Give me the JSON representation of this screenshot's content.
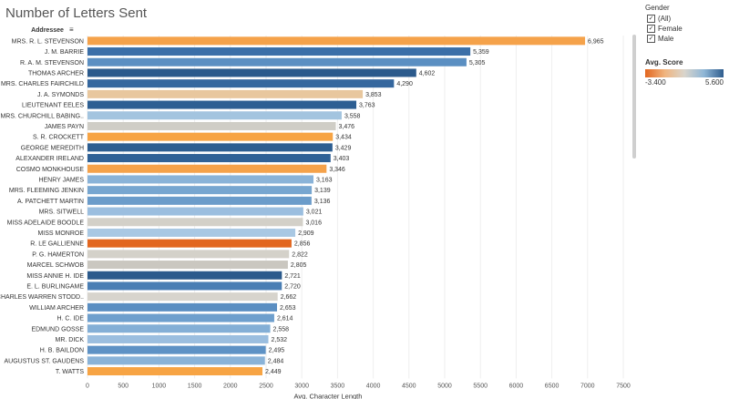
{
  "title": "Number of Letters Sent",
  "chart_data": {
    "type": "bar",
    "orientation": "horizontal",
    "ylabel": "Addressee",
    "xlabel": "Avg. Character Length",
    "xlim": [
      0,
      7500
    ],
    "xticks": [
      0,
      500,
      1000,
      1500,
      2000,
      2500,
      3000,
      3500,
      4000,
      4500,
      5000,
      5500,
      6000,
      6500,
      7000,
      7500
    ],
    "categories": [
      "MRS. R. L. STEVENSON",
      "J. M. BARRIE",
      "R. A. M. STEVENSON",
      "THOMAS ARCHER",
      "MRS. CHARLES FAIRCHILD",
      "J. A. SYMONDS",
      "LIEUTENANT EELES",
      "MRS. CHURCHILL BABING..",
      "JAMES PAYN",
      "S. R. CROCKETT",
      "GEORGE MEREDITH",
      "ALEXANDER IRELAND",
      "COSMO MONKHOUSE",
      "HENRY JAMES",
      "MRS. FLEEMING JENKIN",
      "A. PATCHETT MARTIN",
      "MRS. SITWELL",
      "MISS ADELAIDE BOODLE",
      "MISS MONROE",
      "R. LE GALLIENNE",
      "P. G. HAMERTON",
      "MARCEL SCHWOB",
      "MISS ANNIE H. IDE",
      "E. L. BURLINGAME",
      "CHARLES WARREN STODD..",
      "WILLIAM ARCHER",
      "H. C. IDE",
      "EDMUND GOSSE",
      "MR. DICK",
      "H. B. BAILDON",
      "AUGUSTUS ST. GAUDENS",
      "T. WATTS"
    ],
    "values": [
      6965,
      5359,
      5305,
      4602,
      4290,
      3853,
      3763,
      3558,
      3476,
      3434,
      3429,
      3403,
      3346,
      3163,
      3139,
      3136,
      3021,
      3016,
      2909,
      2856,
      2822,
      2805,
      2721,
      2720,
      2662,
      2653,
      2614,
      2558,
      2532,
      2495,
      2484,
      2449
    ],
    "value_labels": [
      "6,965",
      "5,359",
      "5,305",
      "4,602",
      "4,290",
      "3,853",
      "3,763",
      "3,558",
      "3,476",
      "3,434",
      "3,429",
      "3,403",
      "3,346",
      "3,163",
      "3,139",
      "3,136",
      "3,021",
      "3,016",
      "2,909",
      "2,856",
      "2,822",
      "2,805",
      "2,721",
      "2,720",
      "2,662",
      "2,653",
      "2,614",
      "2,558",
      "2,532",
      "2,495",
      "2,484",
      "2,449"
    ],
    "colors": [
      "#f5a24a",
      "#3b6fa8",
      "#5b8fc2",
      "#2b5a8c",
      "#35679e",
      "#e8c79e",
      "#2e5f93",
      "#a3c4df",
      "#cfcdc6",
      "#f7a444",
      "#2d5e91",
      "#2f6196",
      "#f5a24a",
      "#8ab3d8",
      "#77a6d0",
      "#6b9cca",
      "#9bbedf",
      "#d3d0c8",
      "#a9c8e3",
      "#e2661f",
      "#d4d1c9",
      "#cac7c0",
      "#2b5a8c",
      "#4a7eb4",
      "#d7d4cd",
      "#5a8ec2",
      "#6e9fcd",
      "#84afd6",
      "#9bbedf",
      "#5e92c5",
      "#8ab3d8",
      "#f7a444"
    ]
  },
  "legend": {
    "gender_title": "Gender",
    "gender_options": [
      "(All)",
      "Female",
      "Male"
    ],
    "check_mark": "✓",
    "score_title": "Avg. Score",
    "score_min": "-3.400",
    "score_max": "5.600"
  }
}
